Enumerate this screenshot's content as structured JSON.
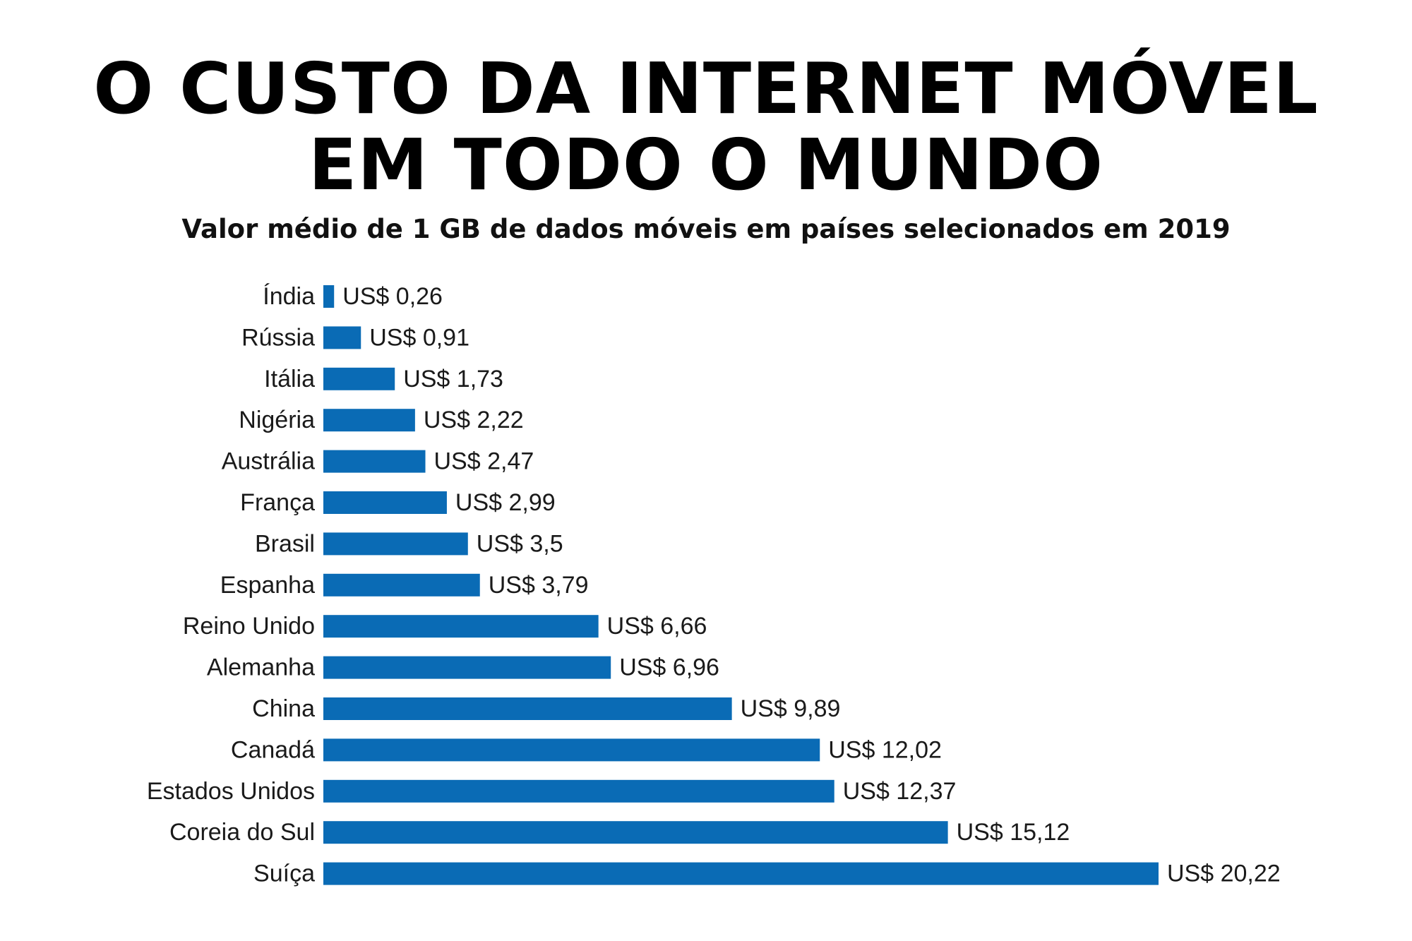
{
  "title_lines": [
    "O CUSTO DA INTERNET MÓVEL",
    "EM TODO O MUNDO"
  ],
  "subtitle": "Valor médio de 1 GB de dados móveis em países selecionados em 2019",
  "chart_data": {
    "type": "bar",
    "orientation": "horizontal",
    "title": "O CUSTO DA INTERNET MÓVEL EM TODO O MUNDO",
    "subtitle": "Valor médio de 1 GB de dados móveis em países selecionados em 2019",
    "categories": [
      "Índia",
      "Rússia",
      "Itália",
      "Nigéria",
      "Austrália",
      "França",
      "Brasil",
      "Espanha",
      "Reino Unido",
      "Alemanha",
      "China",
      "Canadá",
      "Estados Unidos",
      "Coreia do Sul",
      "Suíça"
    ],
    "values": [
      0.26,
      0.91,
      1.73,
      2.22,
      2.47,
      2.99,
      3.5,
      3.79,
      6.66,
      6.96,
      9.89,
      12.02,
      12.37,
      15.12,
      20.22
    ],
    "value_labels": [
      "US$ 0,26",
      "US$ 0,91",
      "US$ 1,73",
      "US$ 2,22",
      "US$ 2,47",
      "US$ 2,99",
      "US$ 3,5",
      "US$ 3,79",
      "US$ 6,66",
      "US$ 6,96",
      "US$ 9,89",
      "US$ 12,02",
      "US$ 12,37",
      "US$ 15,12",
      "US$ 20,22"
    ],
    "xlim": [
      0,
      20.22
    ],
    "grid": false,
    "legend": "none",
    "bar_color": "#0a6bb5"
  }
}
